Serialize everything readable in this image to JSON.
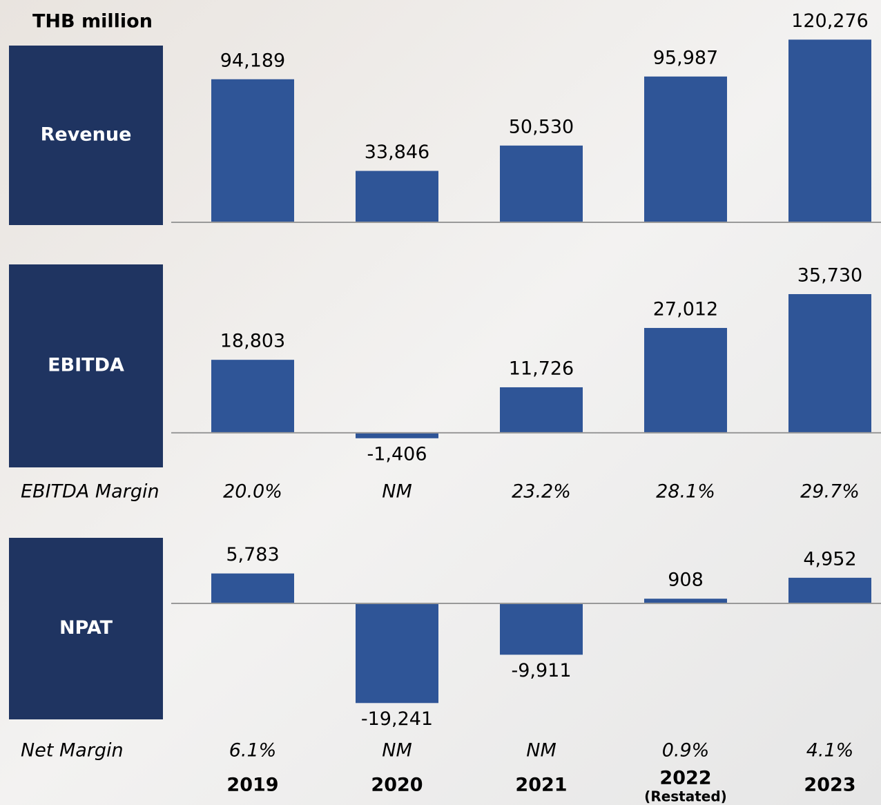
{
  "chart_data": {
    "type": "bar",
    "title": "THB million",
    "categories": [
      "2019",
      "2020",
      "2021",
      "2022",
      "2023"
    ],
    "category_notes": [
      null,
      null,
      null,
      "(Restated)",
      null
    ],
    "series": [
      {
        "name": "Revenue",
        "color": "#2f5597",
        "values": [
          94189,
          33846,
          50530,
          95987,
          120276
        ],
        "value_labels": [
          "94,189",
          "33,846",
          "50,530",
          "95,987",
          "120,276"
        ],
        "ylim": [
          0,
          125000
        ]
      },
      {
        "name": "EBITDA",
        "color": "#2f5597",
        "values": [
          18803,
          -1406,
          11726,
          27012,
          35730
        ],
        "value_labels": [
          "18,803",
          "-1,406",
          "11,726",
          "27,012",
          "35,730"
        ],
        "ylim": [
          -5000,
          40000
        ]
      },
      {
        "name": "NPAT",
        "color": "#2f5597",
        "values": [
          5783,
          -19241,
          -9911,
          908,
          4952
        ],
        "value_labels": [
          "5,783",
          "-19,241",
          "-9,911",
          "908",
          "4,952"
        ],
        "ylim": [
          -20000,
          10000
        ]
      }
    ],
    "margins": [
      {
        "name": "EBITDA Margin",
        "labels": [
          "20.0%",
          "NM",
          "23.2%",
          "28.1%",
          "29.7%"
        ]
      },
      {
        "name": "Net Margin",
        "labels": [
          "6.1%",
          "NM",
          "NM",
          "0.9%",
          "4.1%"
        ]
      }
    ],
    "box_color": "#1f3461"
  }
}
